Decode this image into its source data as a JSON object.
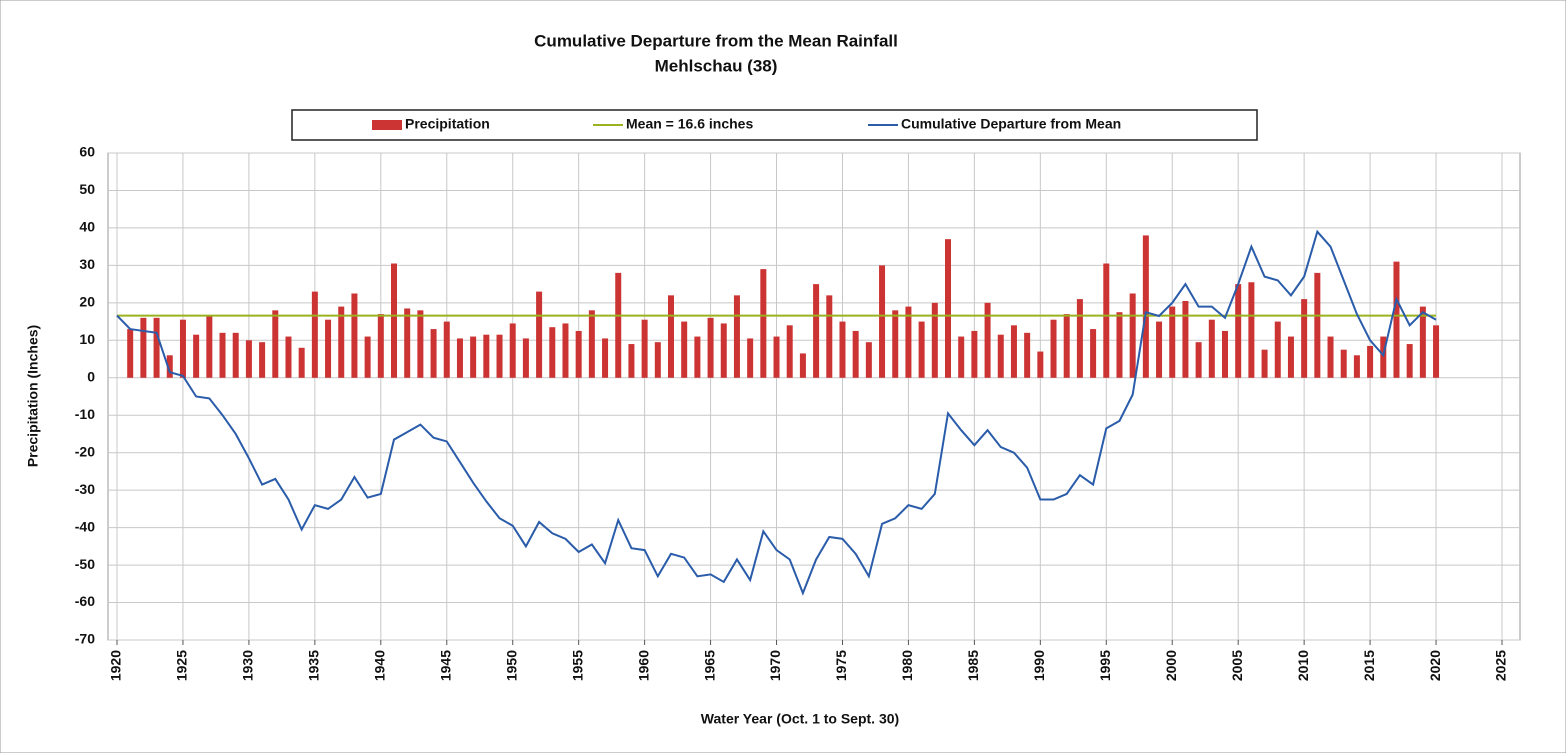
{
  "chart_data": {
    "type": "bar-line",
    "title": "Cumulative Departure from the Mean Rainfall",
    "subtitle": "Mehlschau  (38)",
    "x_label": "Water Year (Oct. 1 to Sept. 30)",
    "y_label": "Precipitation (Inches)",
    "xlim": [
      1920,
      2025
    ],
    "xticks": [
      1920,
      1925,
      1930,
      1935,
      1940,
      1945,
      1950,
      1955,
      1960,
      1965,
      1970,
      1975,
      1980,
      1985,
      1990,
      1995,
      2000,
      2005,
      2010,
      2015,
      2020,
      2025
    ],
    "ylim": [
      -70,
      60
    ],
    "yticks": [
      -70,
      -60,
      -50,
      -40,
      -30,
      -20,
      -10,
      0,
      10,
      20,
      30,
      40,
      50,
      60
    ],
    "grid": true,
    "legend": "top",
    "x": [
      1920,
      1921,
      1922,
      1923,
      1924,
      1925,
      1926,
      1927,
      1928,
      1929,
      1930,
      1931,
      1932,
      1933,
      1934,
      1935,
      1936,
      1937,
      1938,
      1939,
      1940,
      1941,
      1942,
      1943,
      1944,
      1945,
      1946,
      1947,
      1948,
      1949,
      1950,
      1951,
      1952,
      1953,
      1954,
      1955,
      1956,
      1957,
      1958,
      1959,
      1960,
      1961,
      1962,
      1963,
      1964,
      1965,
      1966,
      1967,
      1968,
      1969,
      1970,
      1971,
      1972,
      1973,
      1974,
      1975,
      1976,
      1977,
      1978,
      1979,
      1980,
      1981,
      1982,
      1983,
      1984,
      1985,
      1986,
      1987,
      1988,
      1989,
      1990,
      1991,
      1992,
      1993,
      1994,
      1995,
      1996,
      1997,
      1998,
      1999,
      2000,
      2001,
      2002,
      2003,
      2004,
      2005,
      2006,
      2007,
      2008,
      2009,
      2010,
      2011,
      2012,
      2013,
      2014,
      2015,
      2016,
      2017,
      2018,
      2019,
      2020
    ],
    "series": [
      {
        "name": "Precipitation",
        "type": "bar",
        "color": "#cc3333",
        "values": [
          null,
          13,
          16,
          16,
          6,
          15.5,
          11.5,
          16.5,
          12,
          12,
          10,
          9.5,
          18,
          11,
          8,
          23,
          15.5,
          19,
          22.5,
          11,
          17,
          30.5,
          18.5,
          18,
          13,
          15,
          10.5,
          11,
          11.5,
          11.5,
          14.5,
          10.5,
          23,
          13.5,
          14.5,
          12.5,
          18,
          10.5,
          28,
          9,
          15.5,
          9.5,
          22,
          15,
          11,
          16,
          14.5,
          22,
          10.5,
          29,
          11,
          14,
          6.5,
          25,
          22,
          15,
          12.5,
          9.5,
          30,
          18,
          19,
          15,
          20,
          37,
          11,
          12.5,
          20,
          11.5,
          14,
          12,
          7,
          15.5,
          17,
          21,
          13,
          30.5,
          17.5,
          22.5,
          38,
          15,
          19,
          20.5,
          9.5,
          15.5,
          12.5,
          25,
          25.5,
          7.5,
          15,
          11,
          21,
          28,
          11,
          7.5,
          6,
          8.5,
          11,
          31,
          9,
          19,
          14
        ]
      },
      {
        "name": "Mean = 16.6 inches",
        "type": "line",
        "color": "#9ab21e",
        "x": [
          1920,
          2020
        ],
        "values": [
          16.6,
          16.6
        ]
      },
      {
        "name": "Cumulative Departure from Mean",
        "type": "line",
        "color": "#2a5caa",
        "values": [
          16.6,
          13,
          12.5,
          12,
          1.5,
          0.5,
          -5,
          -5.5,
          -10,
          -15,
          -21.5,
          -28.5,
          -27,
          -32.5,
          -40.5,
          -34,
          -35,
          -32.5,
          -26.5,
          -32,
          -31,
          -16.5,
          -14.5,
          -12.5,
          -16,
          -17,
          -22.5,
          -28,
          -33,
          -37.5,
          -39.5,
          -45,
          -38.5,
          -41.5,
          -43,
          -46.5,
          -44.5,
          -49.5,
          -38,
          -45.5,
          -46,
          -53,
          -47,
          -48,
          -53,
          -52.5,
          -54.5,
          -48.5,
          -54,
          -41,
          -46,
          -48.5,
          -57.5,
          -48.5,
          -42.5,
          -43,
          -47,
          -53,
          -39,
          -37.5,
          -34,
          -35,
          -31,
          -9.5,
          -14,
          -18,
          -14,
          -18.5,
          -20,
          -24,
          -32.5,
          -32.5,
          -31,
          -26,
          -28.5,
          -13.5,
          -11.5,
          -4.5,
          17.5,
          16.5,
          20,
          25,
          19,
          19,
          16,
          25,
          35,
          27,
          26,
          22,
          27,
          39,
          35,
          26,
          17,
          10,
          6,
          21,
          14,
          17.5,
          15.5
        ]
      }
    ]
  }
}
